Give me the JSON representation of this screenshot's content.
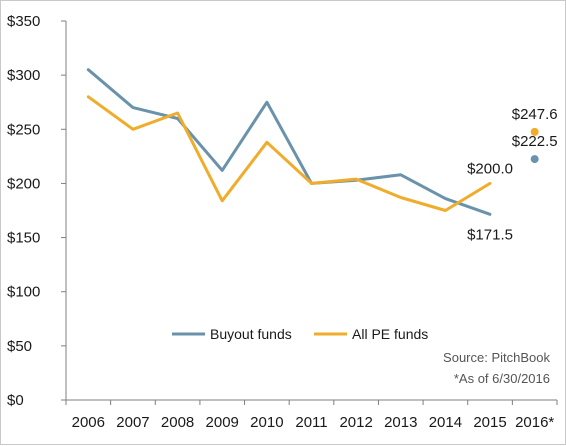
{
  "chart_data": {
    "type": "line",
    "categories": [
      "2006",
      "2007",
      "2008",
      "2009",
      "2010",
      "2011",
      "2012",
      "2013",
      "2014",
      "2015",
      "2016*"
    ],
    "y_ticks": [
      "$0",
      "$50",
      "$100",
      "$150",
      "$200",
      "$250",
      "$300",
      "$350"
    ],
    "ylim": [
      0,
      350
    ],
    "grid": false,
    "legend_position": "bottom-right",
    "series": [
      {
        "name": "Buyout funds",
        "color": "#6a93ab",
        "values": [
          305,
          270,
          260,
          212,
          275,
          200,
          203,
          208,
          186,
          171.5,
          222.5
        ],
        "standalone_last": true
      },
      {
        "name": "All PE funds",
        "color": "#f0ac2b",
        "values": [
          280,
          250,
          265,
          184,
          238,
          200,
          204,
          187,
          175,
          200.0,
          247.6
        ],
        "standalone_last": true
      }
    ],
    "data_labels": [
      {
        "series": 0,
        "index": 9,
        "text": "$171.5"
      },
      {
        "series": 1,
        "index": 9,
        "text": "$200.0"
      },
      {
        "series": 1,
        "index": 10,
        "text": "$247.6"
      },
      {
        "series": 0,
        "index": 10,
        "text": "$222.5"
      }
    ],
    "annotations": [
      "Source: PitchBook",
      "*As of 6/30/2016"
    ]
  }
}
